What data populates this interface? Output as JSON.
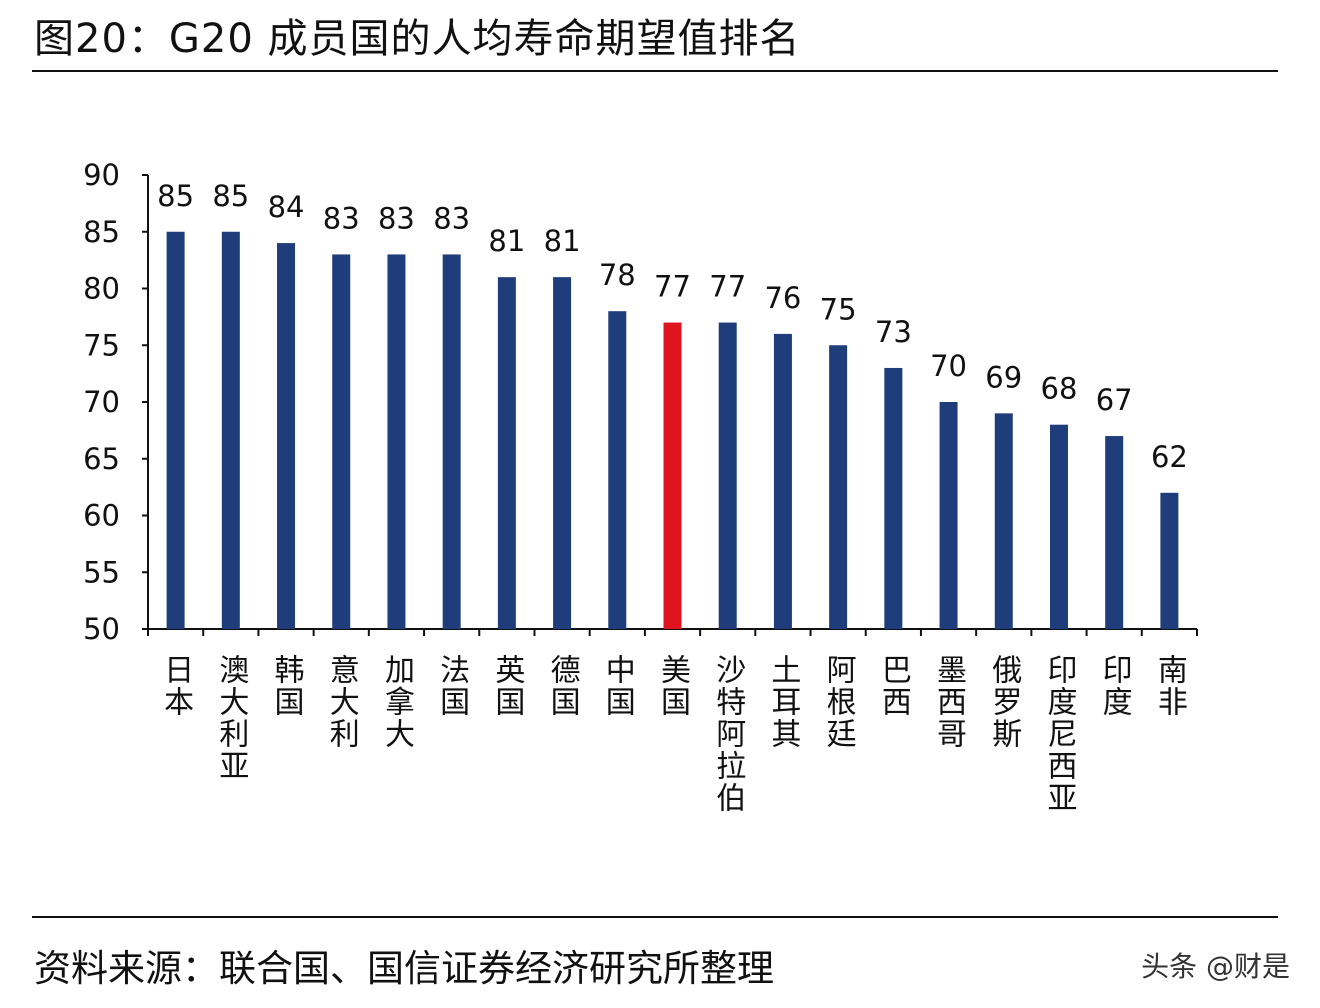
{
  "title": "图20：G20 成员国的人均寿命期望值排名",
  "source": "资料来源：联合国、国信证券经济研究所整理",
  "watermark": "头条 @财是",
  "chart_data": {
    "type": "bar",
    "title": "",
    "xlabel": "",
    "ylabel": "",
    "ylim": [
      50,
      90
    ],
    "yticks": [
      50,
      55,
      60,
      65,
      70,
      75,
      80,
      85,
      90
    ],
    "grid": false,
    "legend": "none",
    "categories": [
      "日本",
      "澳大利亚",
      "韩国",
      "意大利",
      "加拿大",
      "法国",
      "英国",
      "德国",
      "中国",
      "美国",
      "沙特阿拉伯",
      "土耳其",
      "阿根廷",
      "巴西",
      "墨西哥",
      "俄罗斯",
      "印度尼西亚",
      "印度",
      "南非"
    ],
    "values": [
      85,
      85,
      84,
      83,
      83,
      83,
      81,
      81,
      78,
      77,
      77,
      76,
      75,
      73,
      70,
      69,
      68,
      67,
      62
    ],
    "bar_color": "#1f3d7a",
    "highlight_color": "#e0141e",
    "highlight_category": "美国"
  }
}
